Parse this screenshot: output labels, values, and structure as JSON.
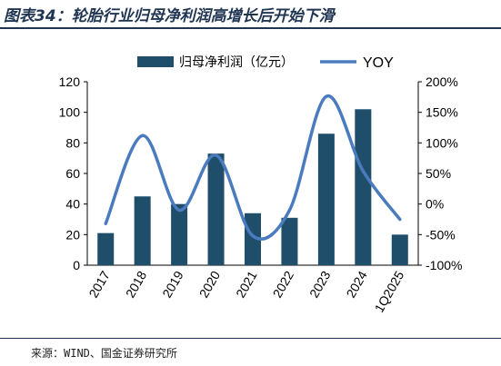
{
  "header": {
    "title": "图表34：轮胎行业归母净利润高增长后开始下滑"
  },
  "footer": {
    "source": "来源：WIND、国金证券研究所"
  },
  "chart_data": {
    "type": "bar",
    "categories": [
      "2017",
      "2018",
      "2019",
      "2020",
      "2021",
      "2022",
      "2023",
      "2024",
      "1Q2025"
    ],
    "series": [
      {
        "name": "归母净利润（亿元）",
        "type": "bar",
        "axis": "left",
        "color": "#1f4e6b",
        "values": [
          21,
          45,
          40,
          73,
          34,
          31,
          86,
          102,
          20
        ]
      },
      {
        "name": "YOY",
        "type": "line",
        "axis": "right",
        "color": "#4a7bbf",
        "values": [
          -0.32,
          1.12,
          -0.1,
          0.8,
          -0.52,
          -0.1,
          1.76,
          0.54,
          -0.25
        ]
      }
    ],
    "y_left": {
      "lim": [
        0,
        120
      ],
      "ticks": [
        0,
        20,
        40,
        60,
        80,
        100,
        120
      ]
    },
    "y_right": {
      "lim": [
        -1.0,
        2.0
      ],
      "ticks": [
        -1.0,
        -0.5,
        0,
        0.5,
        1.0,
        1.5,
        2.0
      ],
      "tick_labels": [
        "-100%",
        "-50%",
        "0%",
        "50%",
        "100%",
        "150%",
        "200%"
      ]
    },
    "legend": "top-center",
    "grid": false
  }
}
